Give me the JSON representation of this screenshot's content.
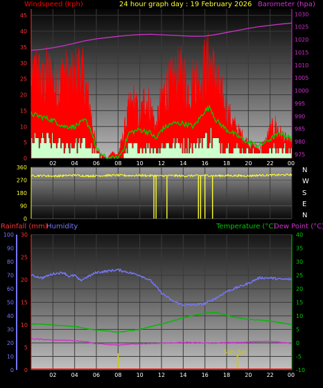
{
  "title": "24 hour graph day : 19 February 2026",
  "colors": {
    "wind_red": "#ff0000",
    "gust_green": "#00cc00",
    "wind_light": "#ccffcc",
    "barometer": "#cc33cc",
    "direction": "#ffff33",
    "humidity": "#7777ff",
    "temperature": "#00bb00",
    "dewpoint": "#cc33cc",
    "rain_axis": "#ff3333",
    "sunset": "#cccc00",
    "grid": "#3a3a3a"
  },
  "top_panel": {
    "left_axis_title": "Windspeed (kph)",
    "right_axis_title": "Barometer (hpa)"
  },
  "bottom_panel": {
    "rain_title": "Rainfall (mm)",
    "humidity_title": "Humidity",
    "temperature_title": "Temperature (°C)",
    "dewpoint_title": "Dew Point (°C)",
    "sunset_label": "Sun Set"
  },
  "compass": [
    "N",
    "W",
    "S",
    "E",
    "N"
  ],
  "chart_data": [
    {
      "type": "line",
      "title": "24 hour graph day : 19 February 2026",
      "x_label": "hour",
      "x_ticks": [
        "02",
        "04",
        "06",
        "08",
        "10",
        "12",
        "14",
        "16",
        "18",
        "20",
        "22",
        "00"
      ],
      "y_left_label": "Windspeed (kph)",
      "y_left_ticks": [
        "0",
        "5",
        "10",
        "15",
        "20",
        "25",
        "30",
        "35",
        "40",
        "45"
      ],
      "y_left_range": [
        0,
        47
      ],
      "y_right_label": "Barometer (hpa)",
      "y_right_ticks": [
        "975",
        "980",
        "985",
        "990",
        "995",
        "1000",
        "1005",
        "1010",
        "1015",
        "1020",
        "1025",
        "1030"
      ],
      "y_right_range": [
        973.5,
        1032
      ],
      "series": [
        {
          "name": "Wind Gust",
          "axis": "left",
          "x": [
            0.0,
            0.5,
            1.0,
            1.5,
            2.0,
            2.5,
            3.0,
            3.5,
            4.0,
            4.5,
            5.0,
            5.5,
            6.0,
            6.5,
            7.0,
            7.5,
            8.0,
            8.5,
            9.0,
            9.5,
            10.0,
            10.5,
            11.0,
            11.5,
            12.0,
            12.5,
            13.0,
            13.5,
            14.0,
            14.5,
            15.0,
            15.5,
            16.0,
            16.5,
            17.0,
            17.5,
            18.0,
            18.5,
            19.0,
            19.5,
            20.0,
            20.5,
            21.0,
            21.5,
            22.0,
            22.5,
            23.0,
            23.5,
            24.0
          ],
          "y": [
            22,
            30,
            24,
            28,
            26,
            22,
            29,
            25,
            27,
            30,
            24,
            15,
            3,
            1,
            0,
            2,
            1,
            8,
            16,
            19,
            13,
            21,
            17,
            10,
            20,
            23,
            25,
            27,
            28,
            22,
            26,
            27,
            30,
            32,
            26,
            21,
            16,
            12,
            9,
            7,
            5,
            4,
            3,
            5,
            9,
            11,
            8,
            6,
            5
          ]
        },
        {
          "name": "Wind Average",
          "axis": "left",
          "x": [
            0.0,
            1.0,
            2.0,
            3.0,
            4.0,
            5.0,
            5.5,
            6.0,
            6.5,
            7.0,
            8.0,
            8.5,
            9.0,
            10.0,
            11.0,
            11.5,
            12.0,
            13.0,
            14.0,
            15.0,
            16.0,
            16.5,
            17.0,
            18.0,
            19.0,
            20.0,
            21.0,
            22.0,
            23.0,
            24.0
          ],
          "y": [
            14,
            13,
            12,
            10,
            10,
            12,
            9,
            3,
            1,
            0,
            0,
            3,
            8,
            9,
            8,
            6,
            9,
            11,
            11,
            10,
            15,
            16,
            12,
            9,
            7,
            5,
            4,
            6,
            8,
            6
          ]
        },
        {
          "name": "Barometer",
          "axis": "right",
          "x": [
            0,
            1,
            2,
            3,
            4,
            5,
            6,
            7,
            8,
            9,
            10,
            11,
            12,
            13,
            14,
            15,
            16,
            17,
            18,
            19,
            20,
            21,
            22,
            23,
            24
          ],
          "y": [
            1015.8,
            1016.2,
            1016.8,
            1017.6,
            1018.6,
            1019.6,
            1020.3,
            1020.8,
            1021.3,
            1021.7,
            1022.0,
            1022.1,
            1021.9,
            1021.7,
            1021.5,
            1021.3,
            1021.4,
            1022.0,
            1022.8,
            1023.6,
            1024.4,
            1025.1,
            1025.6,
            1026.1,
            1026.5
          ]
        }
      ]
    },
    {
      "type": "line",
      "x_ticks": [
        "02",
        "04",
        "06",
        "08",
        "10",
        "12",
        "14",
        "16",
        "18",
        "20",
        "22",
        "00"
      ],
      "y_ticks": [
        "0",
        "90",
        "180",
        "270",
        "360"
      ],
      "y_range": [
        0,
        360
      ],
      "series": [
        {
          "name": "Wind Direction",
          "x": [
            0,
            1,
            2,
            3,
            4,
            5,
            6,
            7,
            8,
            9,
            10,
            11,
            12,
            13,
            14,
            15,
            16,
            17,
            18,
            19,
            20,
            21,
            22,
            23,
            24
          ],
          "y": [
            300,
            302,
            298,
            301,
            305,
            299,
            300,
            303,
            304,
            302,
            303,
            301,
            300,
            302,
            299,
            301,
            303,
            300,
            302,
            301,
            300,
            304,
            305,
            306,
            308
          ]
        }
      ],
      "dips_to_zero_hours": [
        11.3,
        11.5,
        12.5,
        15.4,
        15.6,
        16.0,
        16.7
      ]
    },
    {
      "type": "line",
      "x_ticks": [
        "02",
        "04",
        "06",
        "08",
        "10",
        "12",
        "14",
        "16",
        "18",
        "20",
        "22",
        "00"
      ],
      "y_left_ticks": [
        "0",
        "5",
        "10",
        "15",
        "20",
        "25",
        "30"
      ],
      "y_left_range": [
        0,
        30
      ],
      "y_humidity_ticks": [
        "0",
        "10",
        "20",
        "30",
        "40",
        "50",
        "60",
        "70",
        "80",
        "90",
        "100"
      ],
      "y_humidity_range": [
        0,
        100
      ],
      "y_right_ticks": [
        "-10",
        "-5",
        "0",
        "5",
        "10",
        "15",
        "20",
        "25",
        "30",
        "35",
        "40"
      ],
      "y_right_range": [
        -10,
        40
      ],
      "series": [
        {
          "name": "Rainfall",
          "axis": "rain",
          "x": [
            0,
            24
          ],
          "y": [
            0,
            0
          ]
        },
        {
          "name": "Humidity",
          "axis": "humidity",
          "x": [
            0,
            1,
            2,
            3,
            3.5,
            4,
            4.5,
            5,
            6,
            7,
            8,
            9,
            10,
            11,
            12,
            13,
            14,
            15,
            16,
            17,
            18,
            19,
            20,
            21,
            22,
            23,
            24
          ],
          "y": [
            70,
            68,
            71,
            72,
            69,
            70,
            66,
            68,
            72,
            73,
            74,
            72,
            70,
            66,
            57,
            51,
            48,
            48,
            49,
            53,
            58,
            61,
            64,
            68,
            68,
            67,
            67
          ]
        },
        {
          "name": "Temperature",
          "axis": "temp",
          "x": [
            0,
            1,
            2,
            3,
            4,
            5,
            6,
            7,
            8,
            9,
            10,
            11,
            12,
            13,
            14,
            15,
            16,
            17,
            18,
            19,
            20,
            21,
            22,
            23,
            24
          ],
          "y": [
            7.0,
            7.0,
            6.6,
            6.3,
            6.1,
            5.3,
            4.8,
            4.4,
            3.9,
            4.4,
            5.0,
            6.0,
            7.0,
            8.0,
            9.3,
            10.2,
            11.0,
            11.3,
            10.2,
            9.3,
            8.7,
            8.4,
            8.1,
            7.4,
            6.8
          ]
        },
        {
          "name": "Dew Point",
          "axis": "temp",
          "x": [
            0,
            1,
            2,
            3,
            4,
            5,
            6,
            7,
            8,
            9,
            10,
            11,
            12,
            13,
            14,
            15,
            16,
            17,
            18,
            19,
            20,
            21,
            22,
            23,
            24
          ],
          "y": [
            1.5,
            1.3,
            1.0,
            1.0,
            0.8,
            0.4,
            -0.3,
            -0.6,
            -0.8,
            -0.5,
            -0.3,
            -0.3,
            -0.1,
            0.0,
            0.2,
            0.1,
            0.0,
            -0.1,
            0.2,
            0.1,
            0.3,
            0.5,
            0.6,
            0.2,
            -0.2
          ]
        }
      ],
      "markers": [
        {
          "label": "",
          "hour": 8.0
        },
        {
          "label": "Sun Set",
          "hour": 19.0
        }
      ]
    }
  ]
}
